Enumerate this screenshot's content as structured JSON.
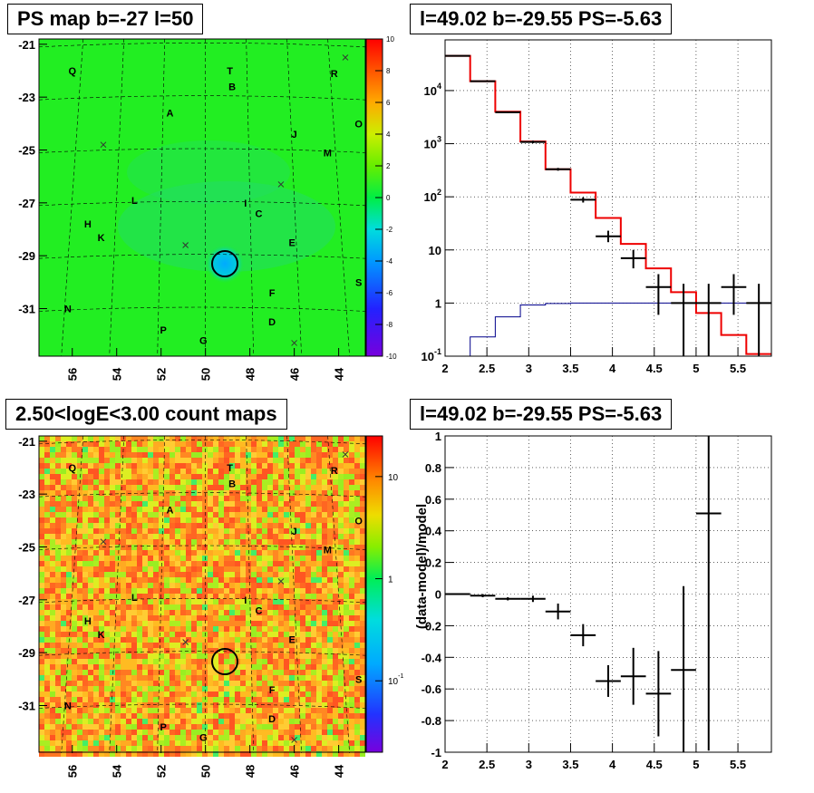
{
  "panels": {
    "tl_title": "PS map b=-27 l=50",
    "tr_title": "l=49.02 b=-29.55 PS=-5.63",
    "bl_title": "2.50<logE<3.00 count maps",
    "br_title": "l=49.02 b=-29.55 PS=-5.63"
  },
  "colors": {
    "green_map": "#22ee22",
    "red_model": "#ee0000",
    "blue_model": "#00008b",
    "data": "#000000"
  },
  "chart_data": [
    {
      "id": "ps-map",
      "type": "heatmap",
      "x_ticks": [
        "56",
        "54",
        "52",
        "50",
        "48",
        "46",
        "44"
      ],
      "x_tick_values": [
        56,
        54,
        52,
        50,
        48,
        46,
        44
      ],
      "y_ticks": [
        "-21",
        "-23",
        "-25",
        "-27",
        "-29",
        "-31"
      ],
      "y_tick_values": [
        -21,
        -23,
        -25,
        -27,
        -29,
        -31
      ],
      "xlim": [
        57.5,
        42.8
      ],
      "ylim": [
        -32.8,
        -20.8
      ],
      "colorbar": {
        "min": -10,
        "max": 10,
        "ticks": [
          "10",
          "8",
          "6",
          "4",
          "2",
          "0",
          "-2",
          "-4",
          "-6",
          "-8",
          "-10"
        ]
      },
      "labels": [
        {
          "t": "Q",
          "l": 56.0,
          "b": -22.0
        },
        {
          "t": "T",
          "l": 48.9,
          "b": -22.0
        },
        {
          "t": "B",
          "l": 48.8,
          "b": -22.6
        },
        {
          "t": "R",
          "l": 44.2,
          "b": -22.1
        },
        {
          "t": "A",
          "l": 51.6,
          "b": -23.6
        },
        {
          "t": "O",
          "l": 43.1,
          "b": -24.0
        },
        {
          "t": "J",
          "l": 46.0,
          "b": -24.4
        },
        {
          "t": "M",
          "l": 44.5,
          "b": -25.1
        },
        {
          "t": "L",
          "l": 53.2,
          "b": -26.9
        },
        {
          "t": "I",
          "l": 48.2,
          "b": -27.0
        },
        {
          "t": "C",
          "l": 47.6,
          "b": -27.4
        },
        {
          "t": "H",
          "l": 55.3,
          "b": -27.8
        },
        {
          "t": "K",
          "l": 54.7,
          "b": -28.3
        },
        {
          "t": "E",
          "l": 46.1,
          "b": -28.5
        },
        {
          "t": "S",
          "l": 43.1,
          "b": -30.0
        },
        {
          "t": "F",
          "l": 47.0,
          "b": -30.4
        },
        {
          "t": "N",
          "l": 56.2,
          "b": -31.0
        },
        {
          "t": "D",
          "l": 47.0,
          "b": -31.5
        },
        {
          "t": "P",
          "l": 51.9,
          "b": -31.8
        },
        {
          "t": "G",
          "l": 50.1,
          "b": -32.2
        }
      ],
      "crosses": [
        {
          "l": 43.7,
          "b": -21.5
        },
        {
          "l": 54.6,
          "b": -24.8
        },
        {
          "l": 46.6,
          "b": -26.3
        },
        {
          "l": 50.9,
          "b": -28.6
        },
        {
          "l": 46.0,
          "b": -32.3
        }
      ],
      "circle": {
        "l": 49.02,
        "b": -29.55
      }
    },
    {
      "id": "spectrum",
      "type": "line",
      "log_y": true,
      "xlim": [
        2,
        5.9
      ],
      "ylim": [
        0.1,
        90000
      ],
      "x_ticks": [
        "2",
        "2.5",
        "3",
        "3.5",
        "4",
        "4.5",
        "5",
        "5.5"
      ],
      "x_tick_values": [
        2,
        2.5,
        3,
        3.5,
        4,
        4.5,
        5,
        5.5
      ],
      "y_ticks": [
        "10^-1",
        "1",
        "10",
        "10^2",
        "10^3",
        "10^4"
      ],
      "y_tick_values": [
        0.1,
        1,
        10,
        100,
        1000,
        10000
      ],
      "red_step": [
        {
          "x0": 2.0,
          "x1": 2.3,
          "y": 45000
        },
        {
          "x0": 2.3,
          "x1": 2.6,
          "y": 15000
        },
        {
          "x0": 2.6,
          "x1": 2.9,
          "y": 4000
        },
        {
          "x0": 2.9,
          "x1": 3.2,
          "y": 1100
        },
        {
          "x0": 3.2,
          "x1": 3.5,
          "y": 330
        },
        {
          "x0": 3.5,
          "x1": 3.8,
          "y": 120
        },
        {
          "x0": 3.8,
          "x1": 4.1,
          "y": 40
        },
        {
          "x0": 4.1,
          "x1": 4.4,
          "y": 13
        },
        {
          "x0": 4.4,
          "x1": 4.7,
          "y": 4.5
        },
        {
          "x0": 4.7,
          "x1": 5.0,
          "y": 1.6
        },
        {
          "x0": 5.0,
          "x1": 5.3,
          "y": 0.65
        },
        {
          "x0": 5.3,
          "x1": 5.6,
          "y": 0.25
        },
        {
          "x0": 5.6,
          "x1": 5.9,
          "y": 0.11
        }
      ],
      "blue_step": [
        {
          "x0": 2.3,
          "x1": 2.6,
          "y": 0.23
        },
        {
          "x0": 2.6,
          "x1": 2.9,
          "y": 0.55
        },
        {
          "x0": 2.9,
          "x1": 3.2,
          "y": 0.92
        },
        {
          "x0": 3.2,
          "x1": 3.5,
          "y": 0.98
        },
        {
          "x0": 3.5,
          "x1": 5.9,
          "y": 1.0
        }
      ],
      "points": [
        {
          "x": 2.15,
          "y": 45000,
          "lo": 45000,
          "hi": 45000
        },
        {
          "x": 2.45,
          "y": 15000,
          "lo": 15000,
          "hi": 15000
        },
        {
          "x": 2.75,
          "y": 3900,
          "lo": 3800,
          "hi": 4000
        },
        {
          "x": 3.05,
          "y": 1080,
          "lo": 1020,
          "hi": 1140
        },
        {
          "x": 3.35,
          "y": 330,
          "lo": 310,
          "hi": 350
        },
        {
          "x": 3.65,
          "y": 88,
          "lo": 78,
          "hi": 98
        },
        {
          "x": 3.95,
          "y": 18,
          "lo": 14,
          "hi": 23
        },
        {
          "x": 4.25,
          "y": 7,
          "lo": 4.5,
          "hi": 10
        },
        {
          "x": 4.55,
          "y": 2,
          "lo": 0.6,
          "hi": 3.5
        },
        {
          "x": 4.85,
          "y": 1,
          "lo": 0.1,
          "hi": 2.3
        },
        {
          "x": 5.15,
          "y": 1,
          "lo": 0.1,
          "hi": 2.3
        },
        {
          "x": 5.45,
          "y": 2,
          "lo": 0.6,
          "hi": 3.5
        },
        {
          "x": 5.75,
          "y": 1,
          "lo": 0.1,
          "hi": 2.3
        }
      ]
    },
    {
      "id": "count-map",
      "type": "heatmap",
      "x_ticks": [
        "56",
        "54",
        "52",
        "50",
        "48",
        "46",
        "44"
      ],
      "y_ticks": [
        "-21",
        "-23",
        "-25",
        "-27",
        "-29",
        "-31"
      ],
      "colorbar": {
        "ticks": [
          "10",
          "1",
          "10^-1"
        ],
        "tick_values": [
          10,
          1,
          0.1
        ],
        "min": 0.02,
        "max": 25,
        "log": true
      }
    },
    {
      "id": "residual",
      "type": "scatter",
      "ylabel": "(data-model)/model",
      "xlim": [
        2,
        5.9
      ],
      "ylim": [
        -1,
        1
      ],
      "x_ticks": [
        "2",
        "2.5",
        "3",
        "3.5",
        "4",
        "4.5",
        "5",
        "5.5"
      ],
      "x_tick_values": [
        2,
        2.5,
        3,
        3.5,
        4,
        4.5,
        5,
        5.5
      ],
      "y_ticks": [
        "1",
        "0.8",
        "0.6",
        "0.4",
        "0.2",
        "0",
        "-0.2",
        "-0.4",
        "-0.6",
        "-0.8",
        "-1"
      ],
      "y_tick_values": [
        1,
        0.8,
        0.6,
        0.4,
        0.2,
        0,
        -0.2,
        -0.4,
        -0.6,
        -0.8,
        -1
      ],
      "points": [
        {
          "x": 2.15,
          "y": 0.0,
          "e": 0.0
        },
        {
          "x": 2.45,
          "y": -0.01,
          "e": 0.01
        },
        {
          "x": 2.75,
          "y": -0.03,
          "e": 0.01
        },
        {
          "x": 3.05,
          "y": -0.03,
          "e": 0.02
        },
        {
          "x": 3.35,
          "y": -0.11,
          "e": 0.05
        },
        {
          "x": 3.65,
          "y": -0.26,
          "e": 0.07
        },
        {
          "x": 3.95,
          "y": -0.55,
          "e": 0.1
        },
        {
          "x": 4.25,
          "y": -0.52,
          "e": 0.18
        },
        {
          "x": 4.55,
          "y": -0.63,
          "e": 0.27
        },
        {
          "x": 4.85,
          "y": -0.48,
          "e": 0.53
        },
        {
          "x": 5.15,
          "y": 0.51,
          "e": 1.5
        }
      ]
    }
  ]
}
